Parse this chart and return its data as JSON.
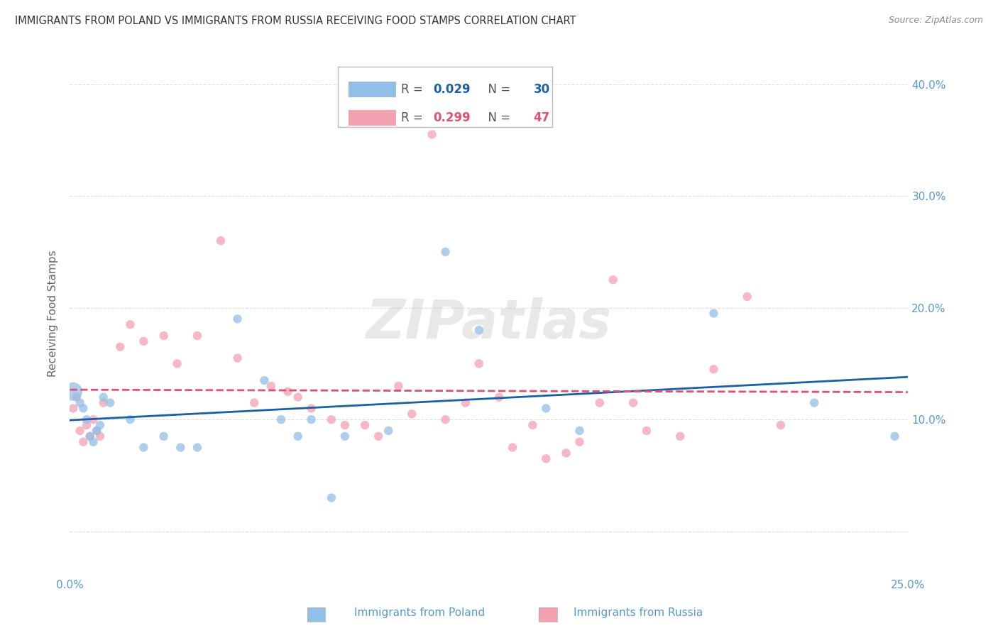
{
  "title": "IMMIGRANTS FROM POLAND VS IMMIGRANTS FROM RUSSIA RECEIVING FOOD STAMPS CORRELATION CHART",
  "source": "Source: ZipAtlas.com",
  "ylabel": "Receiving Food Stamps",
  "y_ticks": [
    0.0,
    0.1,
    0.2,
    0.3,
    0.4
  ],
  "y_tick_labels": [
    "",
    "10.0%",
    "20.0%",
    "30.0%",
    "40.0%"
  ],
  "xlim": [
    0.0,
    0.25
  ],
  "ylim": [
    -0.04,
    0.43
  ],
  "poland_R": 0.029,
  "poland_N": 30,
  "russia_R": 0.299,
  "russia_N": 47,
  "poland_color": "#92bfe8",
  "russia_color": "#f4a0b0",
  "trendline_poland_color": "#1a5fa8",
  "trendline_russia_color": "#e05070",
  "background_color": "#ffffff",
  "grid_color": "#dddddd",
  "title_color": "#333333",
  "axis_label_color": "#5599cc",
  "watermark": "ZIPatlas",
  "poland_x": [
    0.001,
    0.003,
    0.004,
    0.005,
    0.006,
    0.007,
    0.008,
    0.009,
    0.012,
    0.018,
    0.022,
    0.028,
    0.033,
    0.038,
    0.05,
    0.058,
    0.063,
    0.068,
    0.072,
    0.078,
    0.082,
    0.095,
    0.112,
    0.122,
    0.142,
    0.152,
    0.192,
    0.222,
    0.246,
    0.01
  ],
  "poland_y": [
    0.125,
    0.115,
    0.11,
    0.1,
    0.085,
    0.08,
    0.09,
    0.095,
    0.115,
    0.1,
    0.075,
    0.085,
    0.075,
    0.075,
    0.19,
    0.135,
    0.1,
    0.085,
    0.1,
    0.03,
    0.085,
    0.09,
    0.25,
    0.18,
    0.11,
    0.09,
    0.195,
    0.115,
    0.085,
    0.12
  ],
  "poland_sizes": [
    350,
    80,
    80,
    80,
    80,
    80,
    80,
    80,
    80,
    80,
    80,
    80,
    80,
    80,
    80,
    80,
    80,
    80,
    80,
    80,
    80,
    80,
    80,
    80,
    80,
    80,
    80,
    80,
    80,
    80
  ],
  "russia_x": [
    0.001,
    0.002,
    0.003,
    0.004,
    0.005,
    0.006,
    0.007,
    0.008,
    0.009,
    0.01,
    0.015,
    0.018,
    0.022,
    0.028,
    0.032,
    0.038,
    0.045,
    0.05,
    0.055,
    0.06,
    0.065,
    0.068,
    0.072,
    0.078,
    0.082,
    0.088,
    0.092,
    0.098,
    0.102,
    0.108,
    0.112,
    0.118,
    0.122,
    0.128,
    0.132,
    0.138,
    0.142,
    0.148,
    0.152,
    0.158,
    0.162,
    0.168,
    0.172,
    0.182,
    0.192,
    0.202,
    0.212
  ],
  "russia_y": [
    0.11,
    0.12,
    0.09,
    0.08,
    0.095,
    0.085,
    0.1,
    0.09,
    0.085,
    0.115,
    0.165,
    0.185,
    0.17,
    0.175,
    0.15,
    0.175,
    0.26,
    0.155,
    0.115,
    0.13,
    0.125,
    0.12,
    0.11,
    0.1,
    0.095,
    0.095,
    0.085,
    0.13,
    0.105,
    0.355,
    0.1,
    0.115,
    0.15,
    0.12,
    0.075,
    0.095,
    0.065,
    0.07,
    0.08,
    0.115,
    0.225,
    0.115,
    0.09,
    0.085,
    0.145,
    0.21,
    0.095
  ],
  "russia_sizes": [
    80,
    80,
    80,
    80,
    80,
    80,
    80,
    80,
    80,
    80,
    80,
    80,
    80,
    80,
    80,
    80,
    80,
    80,
    80,
    80,
    80,
    80,
    80,
    80,
    80,
    80,
    80,
    80,
    80,
    80,
    80,
    80,
    80,
    80,
    80,
    80,
    80,
    80,
    80,
    80,
    80,
    80,
    80,
    80,
    80,
    80,
    80
  ]
}
